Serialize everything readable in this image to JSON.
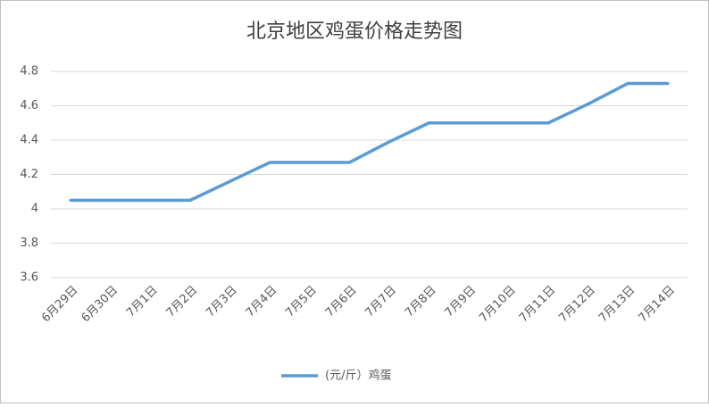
{
  "chart_data": {
    "type": "line",
    "title": "北京地区鸡蛋价格走势图",
    "categories": [
      "6月29日",
      "6月30日",
      "7月1日",
      "7月2日",
      "7月3日",
      "7月4日",
      "7月5日",
      "7月6日",
      "7月7日",
      "7月8日",
      "7月9日",
      "7月10日",
      "7月11日",
      "7月12日",
      "7月13日",
      "7月14日"
    ],
    "series": [
      {
        "name": "(元/斤）鸡蛋",
        "color": "#5b9bd5",
        "values": [
          4.05,
          4.05,
          4.05,
          4.05,
          4.16,
          4.27,
          4.27,
          4.27,
          4.39,
          4.5,
          4.5,
          4.5,
          4.5,
          4.61,
          4.73,
          4.73
        ]
      }
    ],
    "ylim": [
      3.6,
      4.8
    ],
    "yticks": [
      3.6,
      3.8,
      4,
      4.2,
      4.4,
      4.6,
      4.8
    ],
    "grid": true,
    "legend": "bottom"
  }
}
